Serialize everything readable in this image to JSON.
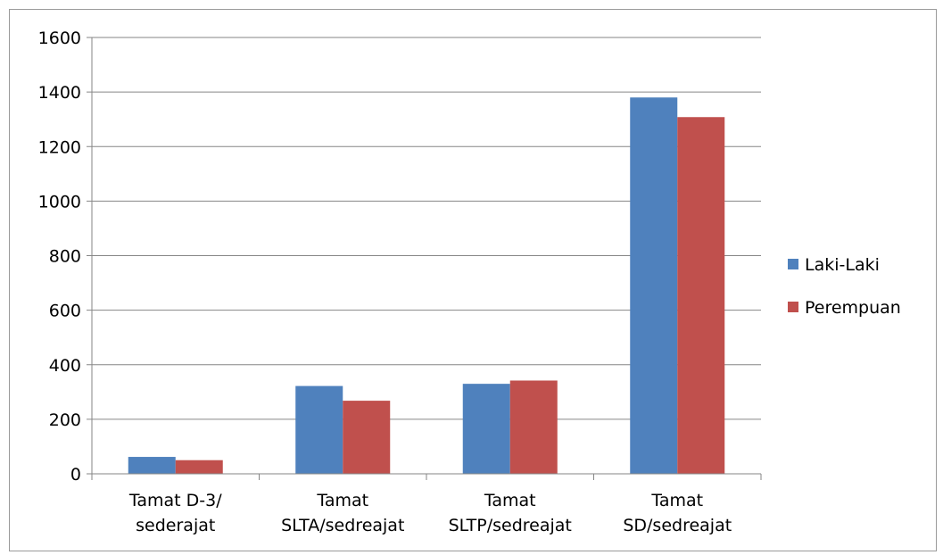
{
  "chart_data": {
    "type": "bar",
    "title": "",
    "xlabel": "",
    "ylabel": "",
    "categories": [
      [
        "Tamat D-3/",
        "sederajat"
      ],
      [
        "Tamat",
        "SLTA/sedreajat"
      ],
      [
        "Tamat",
        "SLTP/sedreajat"
      ],
      [
        "Tamat",
        "SD/sedreajat"
      ]
    ],
    "series": [
      {
        "name": "Laki-Laki",
        "color": "#4F81BD",
        "values": [
          62,
          322,
          330,
          1380
        ]
      },
      {
        "name": "Perempuan",
        "color": "#C0504D",
        "values": [
          50,
          268,
          342,
          1308
        ]
      }
    ],
    "ylim": [
      0,
      1600
    ],
    "yticks": [
      "0",
      "200",
      "400",
      "600",
      "800",
      "1000",
      "1200",
      "1400",
      "1600"
    ],
    "grid": true,
    "legend_position": "right"
  }
}
